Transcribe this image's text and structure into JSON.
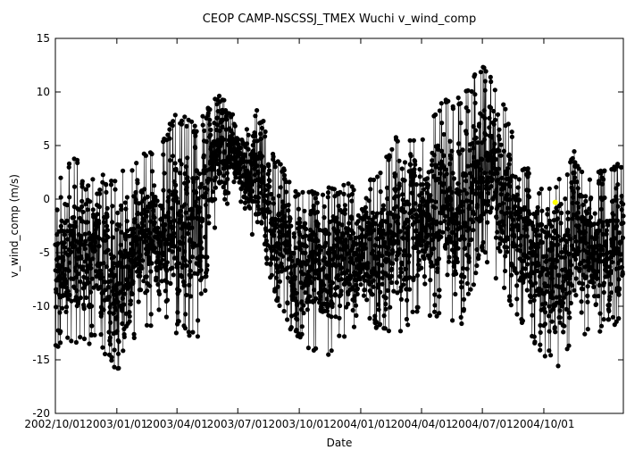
{
  "chart_data": {
    "type": "scatter",
    "title": "CEOP CAMP-NSCSSJ_TMEX Wuchi  v_wind_comp",
    "xlabel": "Date",
    "ylabel": "v_wind_comp (m/s)",
    "ylim": [
      -20,
      15
    ],
    "xlim": [
      "2002-10-01",
      "2005-01-28"
    ],
    "grid": false,
    "y_ticks": [
      15,
      10,
      5,
      0,
      -5,
      -10,
      -15,
      -20
    ],
    "x_ticks": [
      {
        "date": "2002-10-01",
        "label": "2002/10/01"
      },
      {
        "date": "2003-01-01",
        "label": "2003/01/01"
      },
      {
        "date": "2003-04-01",
        "label": "2003/04/01"
      },
      {
        "date": "2003-07-01",
        "label": "2003/07/01"
      },
      {
        "date": "2003-10-01",
        "label": "2003/10/01"
      },
      {
        "date": "2004-01-01",
        "label": "2004/01/01"
      },
      {
        "date": "2004-04-01",
        "label": "2004/04/01"
      },
      {
        "date": "2004-07-01",
        "label": "2004/07/01"
      },
      {
        "date": "2004-10-01",
        "label": "2004/10/01"
      }
    ],
    "series": [
      {
        "color": "#000000",
        "marker": "filled-circle-with-line",
        "envelope": [
          {
            "x": "2002-10-01",
            "low": -14.5,
            "high": 1.5
          },
          {
            "x": "2002-11-01",
            "low": -13.5,
            "high": 4.5
          },
          {
            "x": "2002-12-01",
            "low": -13.8,
            "high": 2.5
          },
          {
            "x": "2003-01-01",
            "low": -16.5,
            "high": 2.0
          },
          {
            "x": "2003-02-01",
            "low": -12.5,
            "high": 4.5
          },
          {
            "x": "2003-03-01",
            "low": -12.5,
            "high": 4.5
          },
          {
            "x": "2003-04-01",
            "low": -12.5,
            "high": 8.5
          },
          {
            "x": "2003-05-01",
            "low": -13.5,
            "high": 7.0
          },
          {
            "x": "2003-06-01",
            "low": -1.0,
            "high": 10.5
          },
          {
            "x": "2003-07-01",
            "low": 0.0,
            "high": 7.0
          },
          {
            "x": "2003-08-01",
            "low": -5.0,
            "high": 8.5
          },
          {
            "x": "2003-09-01",
            "low": -10.5,
            "high": 3.5
          },
          {
            "x": "2003-10-01",
            "low": -13.5,
            "high": 0.8
          },
          {
            "x": "2003-11-01",
            "low": -15.5,
            "high": 0.8
          },
          {
            "x": "2003-12-01",
            "low": -13.5,
            "high": 1.5
          },
          {
            "x": "2004-01-01",
            "low": -11.5,
            "high": 1.5
          },
          {
            "x": "2004-02-01",
            "low": -12.5,
            "high": 3.5
          },
          {
            "x": "2004-03-01",
            "low": -12.5,
            "high": 7.0
          },
          {
            "x": "2004-04-01",
            "low": -11.0,
            "high": 5.5
          },
          {
            "x": "2004-05-01",
            "low": -11.0,
            "high": 9.5
          },
          {
            "x": "2004-06-01",
            "low": -12.0,
            "high": 9.5
          },
          {
            "x": "2004-07-01",
            "low": -5.0,
            "high": 13.0
          },
          {
            "x": "2004-08-01",
            "low": -9.0,
            "high": 9.8
          },
          {
            "x": "2004-09-01",
            "low": -12.5,
            "high": 3.5
          },
          {
            "x": "2004-10-01",
            "low": -14.5,
            "high": 1.0
          },
          {
            "x": "2004-10-20",
            "low": -16.5,
            "high": 1.5
          },
          {
            "x": "2004-11-15",
            "low": -13.5,
            "high": 4.5
          },
          {
            "x": "2004-12-15",
            "low": -12.5,
            "high": 2.5
          },
          {
            "x": "2005-01-28",
            "low": -12.0,
            "high": 3.5
          }
        ]
      },
      {
        "color": "#ffff00",
        "marker": "filled-circle",
        "points": [
          {
            "x": "2004-10-18",
            "y": -0.3
          }
        ]
      }
    ]
  }
}
